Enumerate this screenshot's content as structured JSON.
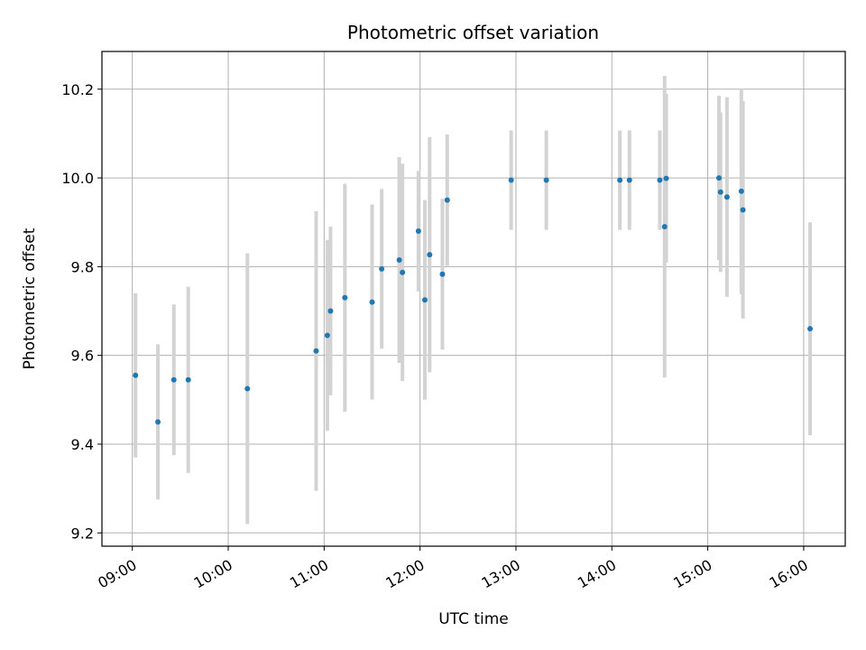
{
  "chart_data": {
    "type": "scatter",
    "title": "Photometric offset variation",
    "xlabel": "UTC time",
    "ylabel": "Photometric offset",
    "xlim": [
      "08:41",
      "16:26"
    ],
    "ylim": [
      9.17,
      10.285
    ],
    "x_ticks": [
      "09:00",
      "10:00",
      "11:00",
      "12:00",
      "13:00",
      "14:00",
      "15:00",
      "16:00"
    ],
    "y_ticks": [
      9.2,
      9.4,
      9.6,
      9.8,
      10.0,
      10.2
    ],
    "grid": true,
    "marker_color": "#1f77b4",
    "errorbar_color": "#d3d3d3",
    "points": [
      {
        "x": "09:02",
        "y": 9.555,
        "err": 0.185
      },
      {
        "x": "09:16",
        "y": 9.45,
        "err": 0.175
      },
      {
        "x": "09:26",
        "y": 9.545,
        "err": 0.17
      },
      {
        "x": "09:35",
        "y": 9.545,
        "err": 0.21
      },
      {
        "x": "10:12",
        "y": 9.525,
        "err": 0.305
      },
      {
        "x": "10:55",
        "y": 9.61,
        "err": 0.315
      },
      {
        "x": "11:02",
        "y": 9.645,
        "err": 0.215
      },
      {
        "x": "11:04",
        "y": 9.7,
        "err": 0.19
      },
      {
        "x": "11:13",
        "y": 9.73,
        "err": 0.257
      },
      {
        "x": "11:30",
        "y": 9.72,
        "err": 0.22
      },
      {
        "x": "11:36",
        "y": 9.795,
        "err": 0.18
      },
      {
        "x": "11:47",
        "y": 9.815,
        "err": 0.232
      },
      {
        "x": "11:49",
        "y": 9.787,
        "err": 0.245
      },
      {
        "x": "11:59",
        "y": 9.88,
        "err": 0.136
      },
      {
        "x": "12:03",
        "y": 9.725,
        "err": 0.225
      },
      {
        "x": "12:06",
        "y": 9.827,
        "err": 0.265
      },
      {
        "x": "12:14",
        "y": 9.783,
        "err": 0.17
      },
      {
        "x": "12:17",
        "y": 9.95,
        "err": 0.148
      },
      {
        "x": "12:57",
        "y": 9.995,
        "err": 0.112
      },
      {
        "x": "13:19",
        "y": 9.995,
        "err": 0.112
      },
      {
        "x": "14:05",
        "y": 9.995,
        "err": 0.112
      },
      {
        "x": "14:11",
        "y": 9.995,
        "err": 0.112
      },
      {
        "x": "14:30",
        "y": 9.995,
        "err": 0.112
      },
      {
        "x": "14:33",
        "y": 9.89,
        "err": 0.34
      },
      {
        "x": "14:34",
        "y": 9.999,
        "err": 0.19
      },
      {
        "x": "15:07",
        "y": 10.0,
        "err": 0.185
      },
      {
        "x": "15:08",
        "y": 9.968,
        "err": 0.18
      },
      {
        "x": "15:12",
        "y": 9.957,
        "err": 0.225
      },
      {
        "x": "15:21",
        "y": 9.97,
        "err": 0.232
      },
      {
        "x": "15:22",
        "y": 9.928,
        "err": 0.245
      },
      {
        "x": "16:04",
        "y": 9.66,
        "err": 0.24
      }
    ]
  }
}
